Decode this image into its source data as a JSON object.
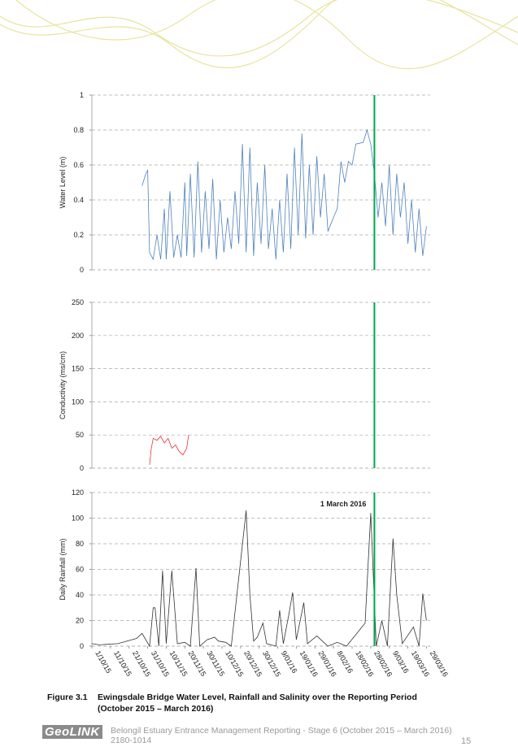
{
  "chart_data": [
    {
      "type": "line",
      "ylabel": "Water Level (m)",
      "color": "#4f81bd",
      "x": [
        "2015-10-28",
        "2015-10-30",
        "2015-10-31",
        "2015-11-01",
        "2015-11-03",
        "2015-11-05",
        "2015-11-07",
        "2015-11-09",
        "2015-11-10",
        "2015-11-12",
        "2015-11-14",
        "2015-11-16",
        "2015-11-18",
        "2015-11-20",
        "2015-11-21",
        "2015-11-23",
        "2015-11-25",
        "2015-11-27",
        "2015-11-29",
        "2015-12-01",
        "2015-12-03",
        "2015-12-05",
        "2015-12-07",
        "2015-12-09",
        "2015-12-11",
        "2015-12-13",
        "2015-12-15",
        "2015-12-17",
        "2015-12-19",
        "2015-12-21",
        "2015-12-23",
        "2015-12-25",
        "2015-12-27",
        "2015-12-29",
        "2015-12-31",
        "2016-01-02",
        "2016-01-04",
        "2016-01-06",
        "2016-01-08",
        "2016-01-10",
        "2016-01-12",
        "2016-01-14",
        "2016-01-16",
        "2016-01-18",
        "2016-01-20",
        "2016-01-22",
        "2016-01-24",
        "2016-01-26",
        "2016-01-28",
        "2016-01-30",
        "2016-02-01",
        "2016-02-03",
        "2016-02-05",
        "2016-02-08",
        "2016-02-10",
        "2016-02-12",
        "2016-02-14",
        "2016-02-16",
        "2016-02-18",
        "2016-02-20",
        "2016-02-24",
        "2016-02-26",
        "2016-02-28",
        "2016-03-01",
        "2016-03-03",
        "2016-03-05",
        "2016-03-07",
        "2016-03-09",
        "2016-03-11",
        "2016-03-13",
        "2016-03-15",
        "2016-03-17",
        "2016-03-19",
        "2016-03-21",
        "2016-03-23",
        "2016-03-25",
        "2016-03-27",
        "2016-03-29"
      ],
      "values": [
        0.48,
        0.55,
        0.57,
        0.1,
        0.06,
        0.2,
        0.06,
        0.35,
        0.06,
        0.45,
        0.07,
        0.2,
        0.07,
        0.5,
        0.08,
        0.55,
        0.07,
        0.62,
        0.1,
        0.45,
        0.12,
        0.52,
        0.06,
        0.4,
        0.1,
        0.3,
        0.12,
        0.45,
        0.15,
        0.72,
        0.1,
        0.7,
        0.08,
        0.5,
        0.15,
        0.6,
        0.12,
        0.35,
        0.06,
        0.4,
        0.1,
        0.55,
        0.12,
        0.7,
        0.2,
        0.78,
        0.18,
        0.6,
        0.2,
        0.65,
        0.3,
        0.55,
        0.22,
        0.3,
        0.35,
        0.62,
        0.5,
        0.62,
        0.6,
        0.72,
        0.73,
        0.8,
        0.72,
        0.55,
        0.3,
        0.5,
        0.25,
        0.6,
        0.2,
        0.55,
        0.3,
        0.5,
        0.15,
        0.4,
        0.1,
        0.35,
        0.08,
        0.25
      ],
      "xlim": [
        "2015-10-01",
        "2016-03-31"
      ],
      "ylim": [
        0,
        1
      ],
      "yticks": [
        0,
        0.2,
        0.4,
        0.6,
        0.8,
        1
      ],
      "grid": true,
      "vline": {
        "x": "2016-03-01",
        "color": "#00a650"
      }
    },
    {
      "type": "line",
      "ylabel": "Conductivity (ms/cm)",
      "color": "#e8303a",
      "x": [
        "2015-11-01",
        "2015-11-02",
        "2015-11-03",
        "2015-11-05",
        "2015-11-07",
        "2015-11-09",
        "2015-11-11",
        "2015-11-13",
        "2015-11-15",
        "2015-11-17",
        "2015-11-19",
        "2015-11-21",
        "2015-11-22"
      ],
      "values": [
        5,
        30,
        45,
        42,
        48,
        38,
        45,
        30,
        35,
        25,
        20,
        30,
        50
      ],
      "xlim": [
        "2015-10-01",
        "2016-03-31"
      ],
      "ylim": [
        0,
        250
      ],
      "yticks": [
        0,
        50,
        100,
        150,
        200,
        250
      ],
      "grid": true,
      "vline": {
        "x": "2016-03-01",
        "color": "#00a650"
      }
    },
    {
      "type": "line",
      "ylabel": "Daily Rainfall (mm)",
      "color": "#333333",
      "x": [
        "2015-10-01",
        "2015-10-05",
        "2015-10-15",
        "2015-10-25",
        "2015-10-28",
        "2015-11-01",
        "2015-11-03",
        "2015-11-04",
        "2015-11-06",
        "2015-11-08",
        "2015-11-10",
        "2015-11-13",
        "2015-11-16",
        "2015-11-20",
        "2015-11-23",
        "2015-11-26",
        "2015-11-28",
        "2015-12-02",
        "2015-12-06",
        "2015-12-08",
        "2015-12-12",
        "2015-12-15",
        "2015-12-23",
        "2015-12-25",
        "2015-12-27",
        "2015-12-29",
        "2016-01-01",
        "2016-01-03",
        "2016-01-08",
        "2016-01-10",
        "2016-01-12",
        "2016-01-15",
        "2016-01-17",
        "2016-01-19",
        "2016-01-23",
        "2016-01-25",
        "2016-01-30",
        "2016-02-05",
        "2016-02-10",
        "2016-02-15",
        "2016-02-25",
        "2016-02-28",
        "2016-03-02",
        "2016-03-05",
        "2016-03-08",
        "2016-03-11",
        "2016-03-13",
        "2016-03-16",
        "2016-03-22",
        "2016-03-25",
        "2016-03-27",
        "2016-03-29"
      ],
      "values": [
        2,
        1,
        2,
        6,
        10,
        0,
        30,
        30,
        0,
        59,
        2,
        59,
        2,
        3,
        0,
        61,
        0,
        5,
        7,
        4,
        3,
        0,
        106,
        40,
        4,
        7,
        18,
        2,
        0,
        28,
        2,
        25,
        42,
        5,
        34,
        2,
        8,
        0,
        3,
        0,
        18,
        104,
        0,
        20,
        0,
        84,
        40,
        2,
        15,
        0,
        41,
        20
      ],
      "xlim": [
        "2015-10-01",
        "2016-03-31"
      ],
      "ylim": [
        0,
        120
      ],
      "yticks": [
        0,
        20,
        40,
        60,
        80,
        100,
        120
      ],
      "grid": true,
      "xticks": [
        {
          "value": "2015-10-01",
          "label": "1/10/15"
        },
        {
          "value": "2015-10-11",
          "label": "11/10/15"
        },
        {
          "value": "2015-10-21",
          "label": "21/10/15"
        },
        {
          "value": "2015-10-31",
          "label": "31/10/15"
        },
        {
          "value": "2015-11-10",
          "label": "10/11/15"
        },
        {
          "value": "2015-11-20",
          "label": "20/11/15"
        },
        {
          "value": "2015-11-30",
          "label": "30/11/15"
        },
        {
          "value": "2015-12-10",
          "label": "10/12/15"
        },
        {
          "value": "2015-12-20",
          "label": "20/12/15"
        },
        {
          "value": "2015-12-30",
          "label": "30/12/15"
        },
        {
          "value": "2016-01-09",
          "label": "9/01/16"
        },
        {
          "value": "2016-01-19",
          "label": "19/01/16"
        },
        {
          "value": "2016-01-29",
          "label": "29/01/16"
        },
        {
          "value": "2016-02-08",
          "label": "8/02/16"
        },
        {
          "value": "2016-02-18",
          "label": "18/02/16"
        },
        {
          "value": "2016-02-28",
          "label": "28/02/16"
        },
        {
          "value": "2016-03-09",
          "label": "9/03/16"
        },
        {
          "value": "2016-03-19",
          "label": "19/03/16"
        },
        {
          "value": "2016-03-29",
          "label": "29/03/16"
        }
      ],
      "vline": {
        "x": "2016-03-01",
        "color": "#00a650"
      },
      "annotation": "1 March 2016"
    }
  ],
  "caption": {
    "number": "Figure 3.1",
    "text": "Ewingsdale Bridge Water Level, Rainfall and Salinity over the Reporting Period",
    "text2": "(October 2015 – March 2016)"
  },
  "footer": {
    "logo": "GeoLINK",
    "text": "Belongil Estuary Entrance Management Reporting - Stage 6 (October 2015 – March 2016)",
    "ref": "2180-1014",
    "page": "15"
  }
}
